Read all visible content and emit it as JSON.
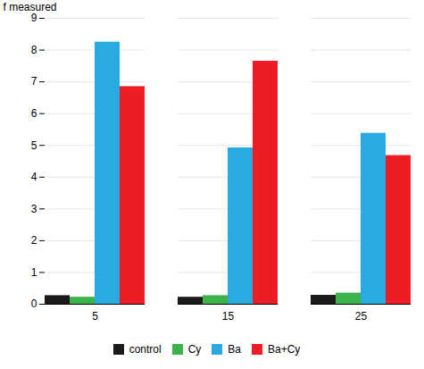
{
  "chart_data": {
    "type": "bar",
    "categories": [
      "5",
      "15",
      "25"
    ],
    "series": [
      {
        "name": "control",
        "color": "#1a1a1a",
        "values": [
          0.27,
          0.22,
          0.28
        ]
      },
      {
        "name": "Cy",
        "color": "#3cb34a",
        "values": [
          0.22,
          0.27,
          0.35
        ]
      },
      {
        "name": "Ba",
        "color": "#29abe2",
        "values": [
          8.25,
          4.92,
          5.38
        ]
      },
      {
        "name": "Ba+Cy",
        "color": "#ee1c25",
        "values": [
          6.85,
          7.65,
          4.68
        ]
      }
    ],
    "ylabel": "f measured",
    "ylim": [
      0,
      9
    ],
    "yticks": [
      0,
      1,
      2,
      3,
      4,
      5,
      6,
      7,
      8,
      9
    ],
    "grid": true,
    "legend": "bottom"
  }
}
